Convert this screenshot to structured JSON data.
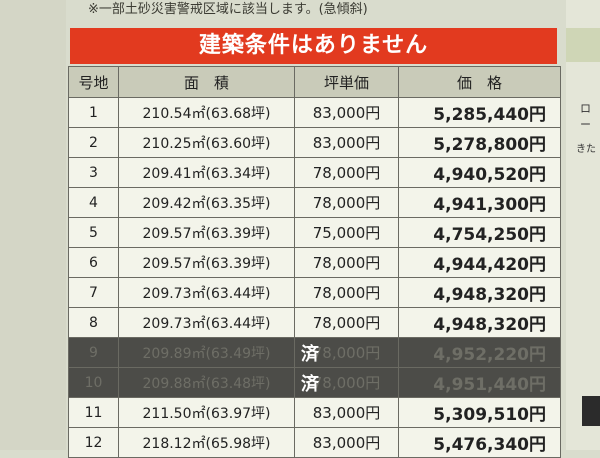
{
  "note": "※一部土砂災害警戒区域に該当します。(急傾斜)",
  "banner": "建築条件はありません",
  "headers": {
    "lot": "号地",
    "area": "面　積",
    "unit_price": "坪単価",
    "price": "価　格"
  },
  "rows": [
    {
      "lot": "1",
      "area": "210.54㎡(63.68坪)",
      "unit_price": "83,000円",
      "price": "5,285,440円",
      "sold": false
    },
    {
      "lot": "2",
      "area": "210.25㎡(63.60坪)",
      "unit_price": "83,000円",
      "price": "5,278,800円",
      "sold": false
    },
    {
      "lot": "3",
      "area": "209.41㎡(63.34坪)",
      "unit_price": "78,000円",
      "price": "4,940,520円",
      "sold": false
    },
    {
      "lot": "4",
      "area": "209.42㎡(63.35坪)",
      "unit_price": "78,000円",
      "price": "4,941,300円",
      "sold": false
    },
    {
      "lot": "5",
      "area": "209.57㎡(63.39坪)",
      "unit_price": "75,000円",
      "price": "4,754,250円",
      "sold": false
    },
    {
      "lot": "6",
      "area": "209.57㎡(63.39坪)",
      "unit_price": "78,000円",
      "price": "4,944,420円",
      "sold": false
    },
    {
      "lot": "7",
      "area": "209.73㎡(63.44坪)",
      "unit_price": "78,000円",
      "price": "4,948,320円",
      "sold": false
    },
    {
      "lot": "8",
      "area": "209.73㎡(63.44坪)",
      "unit_price": "78,000円",
      "price": "4,948,320円",
      "sold": false
    },
    {
      "lot": "9",
      "area": "209.89㎡(63.49坪)",
      "unit_price": "78,000円",
      "price": "4,952,220円",
      "sold": true,
      "sold_mark": "済"
    },
    {
      "lot": "10",
      "area": "209.88㎡(63.48坪)",
      "unit_price": "78,000円",
      "price": "4,951,440円",
      "sold": true,
      "sold_mark": "済"
    },
    {
      "lot": "11",
      "area": "211.50㎡(63.97坪)",
      "unit_price": "83,000円",
      "price": "5,309,510円",
      "sold": false
    },
    {
      "lot": "12",
      "area": "218.12㎡(65.98坪)",
      "unit_price": "83,000円",
      "price": "5,476,340円",
      "sold": false
    }
  ],
  "map": {
    "label1": "ロー",
    "label2": "きた"
  },
  "colors": {
    "banner": "#e23a1f",
    "sold_row": "#4c4c48"
  }
}
